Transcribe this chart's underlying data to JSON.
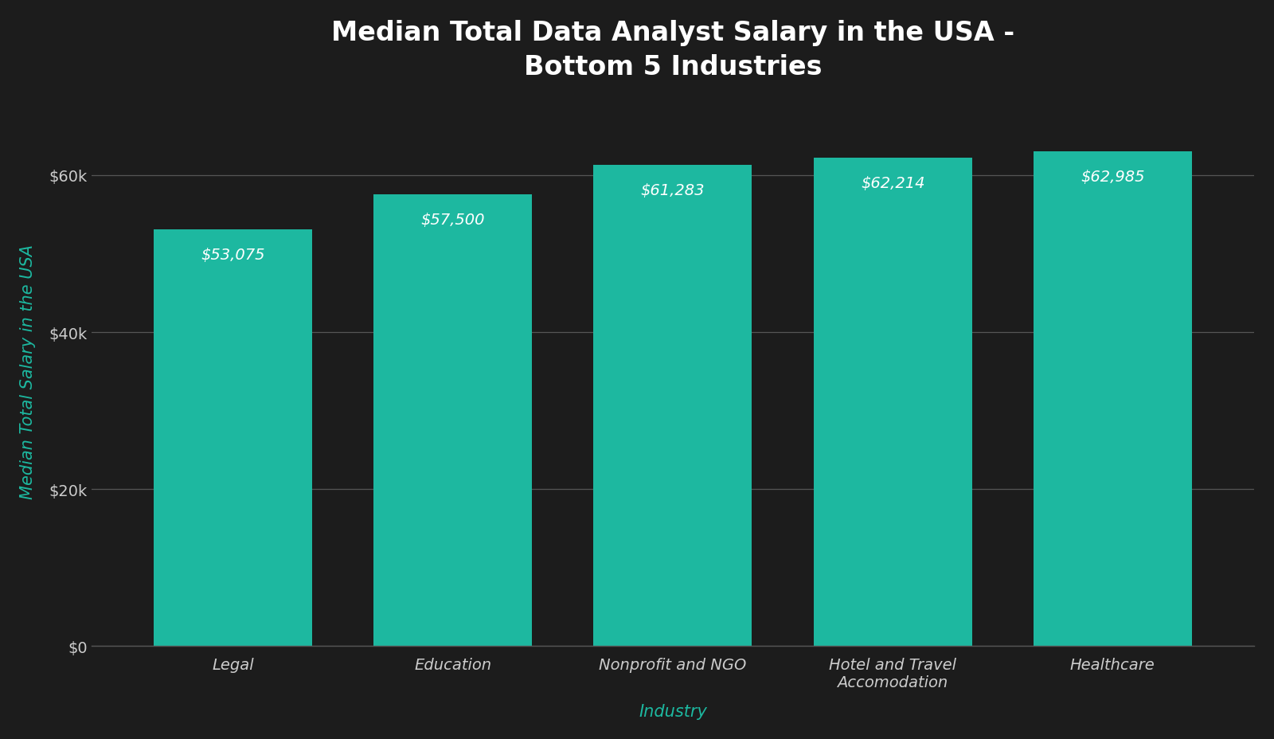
{
  "title": "Median Total Data Analyst Salary in the USA -\nBottom 5 Industries",
  "categories": [
    "Legal",
    "Education",
    "Nonprofit and NGO",
    "Hotel and Travel\nAccomodation",
    "Healthcare"
  ],
  "values": [
    53075,
    57500,
    61283,
    62214,
    62985
  ],
  "labels": [
    "$53,075",
    "$57,500",
    "$61,283",
    "$62,214",
    "$62,985"
  ],
  "bar_color": "#1db8a0",
  "background_color": "#1c1c1c",
  "title_color": "#ffffff",
  "ylabel": "Median Total Salary in the USA",
  "ylabel_color": "#1db8a0",
  "xlabel": "Industry",
  "xlabel_color": "#1db8a0",
  "tick_label_color": "#cccccc",
  "bar_label_color": "#ffffff",
  "grid_color": "#555555",
  "ytick_values": [
    0,
    20000,
    40000,
    60000
  ],
  "ytick_labels": [
    "$0",
    "$20k",
    "$40k",
    "$60k"
  ],
  "ylim": [
    0,
    70000
  ],
  "title_fontsize": 24,
  "axis_label_fontsize": 15,
  "tick_fontsize": 14,
  "bar_label_fontsize": 14,
  "bar_width": 0.72
}
